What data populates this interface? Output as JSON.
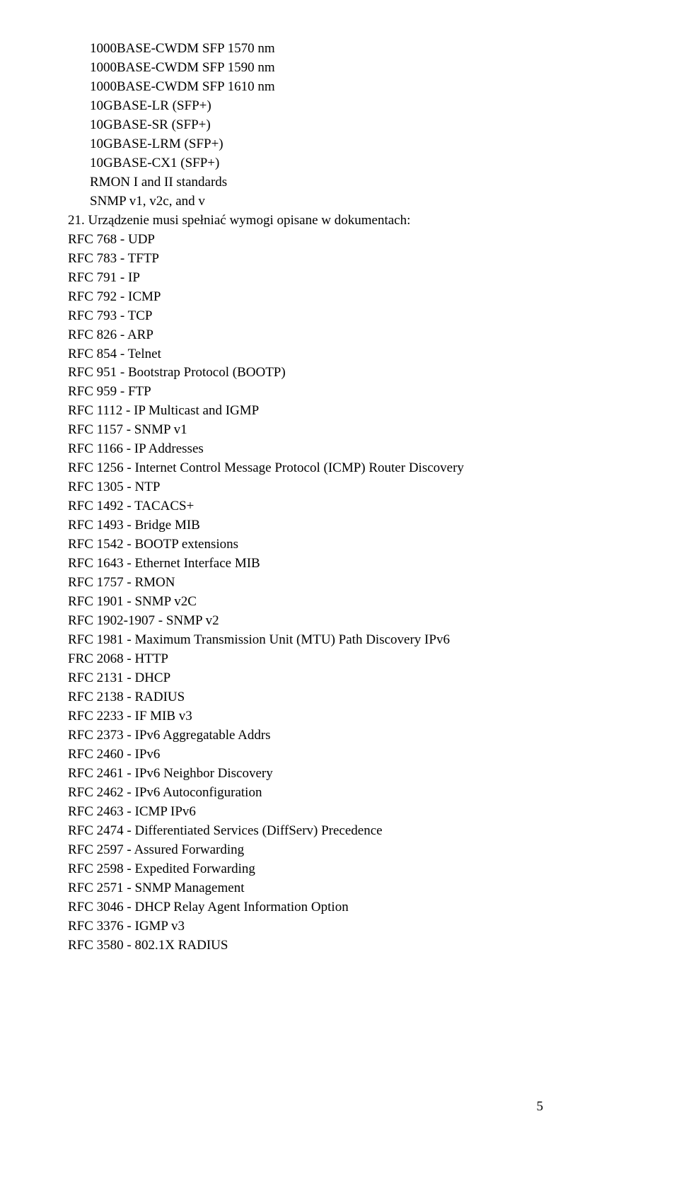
{
  "page": {
    "number": "5"
  },
  "block1": {
    "lines": [
      "1000BASE-CWDM SFP 1570 nm",
      "1000BASE-CWDM SFP 1590 nm",
      "1000BASE-CWDM SFP 1610 nm",
      "10GBASE-LR (SFP+)",
      "10GBASE-SR (SFP+)",
      "10GBASE-LRM (SFP+)",
      "10GBASE-CX1 (SFP+)",
      "RMON I and II standards",
      "SNMP v1, v2c, and v"
    ]
  },
  "item21": {
    "number": "21.",
    "lead": "Urządzenie musi spełniać wymogi opisane w dokumentach:",
    "lines": [
      "RFC 768 - UDP",
      "RFC 783 - TFTP",
      "RFC 791 - IP",
      "RFC 792 - ICMP",
      "RFC 793 - TCP",
      "RFC 826 - ARP",
      "RFC 854 - Telnet",
      "RFC 951 - Bootstrap Protocol (BOOTP)",
      "RFC 959 - FTP",
      "RFC 1112 - IP Multicast and IGMP",
      "RFC 1157 - SNMP v1",
      "RFC 1166 - IP Addresses",
      "RFC 1256 - Internet Control Message Protocol (ICMP) Router Discovery",
      "RFC 1305 - NTP",
      "RFC 1492 - TACACS+",
      "RFC 1493 - Bridge MIB",
      "RFC 1542 - BOOTP extensions",
      "RFC 1643 - Ethernet Interface MIB",
      "RFC 1757 - RMON",
      "RFC 1901 - SNMP v2C",
      "RFC 1902-1907 - SNMP v2",
      "RFC 1981 - Maximum Transmission Unit (MTU) Path Discovery IPv6",
      "FRC 2068 - HTTP",
      "RFC 2131 - DHCP",
      "RFC 2138 - RADIUS",
      "RFC 2233 - IF MIB v3",
      "RFC 2373 - IPv6 Aggregatable Addrs",
      "RFC 2460 - IPv6",
      "RFC 2461 - IPv6 Neighbor Discovery",
      "RFC 2462 - IPv6 Autoconfiguration",
      "RFC 2463 - ICMP IPv6",
      "RFC 2474 - Differentiated Services (DiffServ) Precedence",
      "RFC 2597 - Assured Forwarding",
      "RFC 2598 - Expedited Forwarding",
      "RFC 2571 - SNMP Management",
      "RFC 3046 - DHCP Relay Agent Information Option",
      "RFC 3376 - IGMP v3",
      "RFC 3580 - 802.1X RADIUS"
    ]
  }
}
